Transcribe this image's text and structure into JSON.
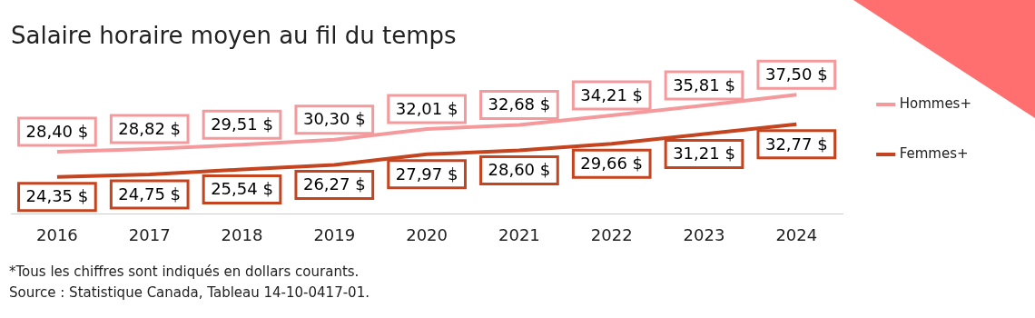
{
  "chart_data": {
    "type": "line",
    "title": "Salaire horaire moyen au fil du temps",
    "categories": [
      "2016",
      "2017",
      "2018",
      "2019",
      "2020",
      "2021",
      "2022",
      "2023",
      "2024"
    ],
    "series": [
      {
        "name": "Hommes+",
        "color": "#f59a9c",
        "values": [
          28.4,
          28.82,
          29.51,
          30.3,
          32.01,
          32.68,
          34.21,
          35.81,
          37.5
        ],
        "value_labels": [
          "28,40 $",
          "28,82 $",
          "29,51 $",
          "30,30 $",
          "32,01 $",
          "32,68 $",
          "34,21 $",
          "35,81 $",
          "37,50 $"
        ]
      },
      {
        "name": "Femmes+",
        "color": "#c4441f",
        "values": [
          24.35,
          24.75,
          25.54,
          26.27,
          27.97,
          28.6,
          29.66,
          31.21,
          32.77
        ],
        "value_labels": [
          "24,35 $",
          "24,75 $",
          "25,54 $",
          "26,27 $",
          "27,97 $",
          "28,60 $",
          "29,66 $",
          "31,21 $",
          "32,77 $"
        ]
      }
    ],
    "legend": "right",
    "grid": false,
    "line_style": "solid",
    "annotations": [
      "*Tous les chiffres sont indiqués en dollars courants.",
      "Source : Statistique Canada, Tableau 14-10-0417-01."
    ]
  }
}
